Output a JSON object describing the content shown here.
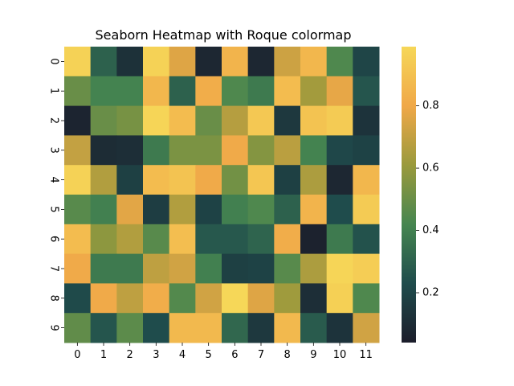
{
  "chart_data": {
    "type": "heatmap",
    "title": "Seaborn Heatmap with Roque colormap",
    "xlabel": "",
    "ylabel": "",
    "x_tick_labels": [
      "0",
      "1",
      "2",
      "3",
      "4",
      "5",
      "6",
      "7",
      "8",
      "9",
      "10",
      "11"
    ],
    "y_tick_labels": [
      "0",
      "1",
      "2",
      "3",
      "4",
      "5",
      "6",
      "7",
      "8",
      "9"
    ],
    "values": [
      [
        0.97,
        0.3,
        0.12,
        0.97,
        0.76,
        0.08,
        0.85,
        0.08,
        0.72,
        0.86,
        0.44,
        0.2
      ],
      [
        0.5,
        0.41,
        0.41,
        0.86,
        0.3,
        0.82,
        0.44,
        0.38,
        0.88,
        0.63,
        0.78,
        0.26
      ],
      [
        0.07,
        0.5,
        0.53,
        0.98,
        0.88,
        0.5,
        0.67,
        0.93,
        0.15,
        0.91,
        0.94,
        0.13
      ],
      [
        0.7,
        0.1,
        0.11,
        0.38,
        0.54,
        0.54,
        0.81,
        0.56,
        0.68,
        0.41,
        0.21,
        0.19
      ],
      [
        0.97,
        0.66,
        0.18,
        0.88,
        0.91,
        0.81,
        0.52,
        0.92,
        0.18,
        0.65,
        0.08,
        0.86
      ],
      [
        0.46,
        0.4,
        0.77,
        0.17,
        0.66,
        0.19,
        0.4,
        0.44,
        0.3,
        0.85,
        0.23,
        0.94
      ],
      [
        0.88,
        0.58,
        0.66,
        0.46,
        0.89,
        0.27,
        0.27,
        0.31,
        0.82,
        0.06,
        0.38,
        0.25
      ],
      [
        0.81,
        0.38,
        0.38,
        0.69,
        0.73,
        0.4,
        0.18,
        0.19,
        0.46,
        0.65,
        0.98,
        0.95
      ],
      [
        0.22,
        0.81,
        0.69,
        0.82,
        0.45,
        0.73,
        0.99,
        0.76,
        0.62,
        0.11,
        0.96,
        0.44
      ],
      [
        0.48,
        0.26,
        0.47,
        0.23,
        0.87,
        0.87,
        0.32,
        0.15,
        0.87,
        0.28,
        0.13,
        0.73
      ]
    ],
    "colorbar": {
      "ticks": [
        0.2,
        0.4,
        0.6,
        0.8
      ],
      "tick_labels": [
        "0.2",
        "0.4",
        "0.6",
        "0.8"
      ],
      "range": [
        0.04,
        0.99
      ]
    },
    "colormap_stops": [
      "#1c1d2b",
      "#1f4c4c",
      "#468650",
      "#9a9a3c",
      "#f0a848",
      "#f6d758"
    ],
    "grid": false,
    "legend": "colorbar-right"
  }
}
